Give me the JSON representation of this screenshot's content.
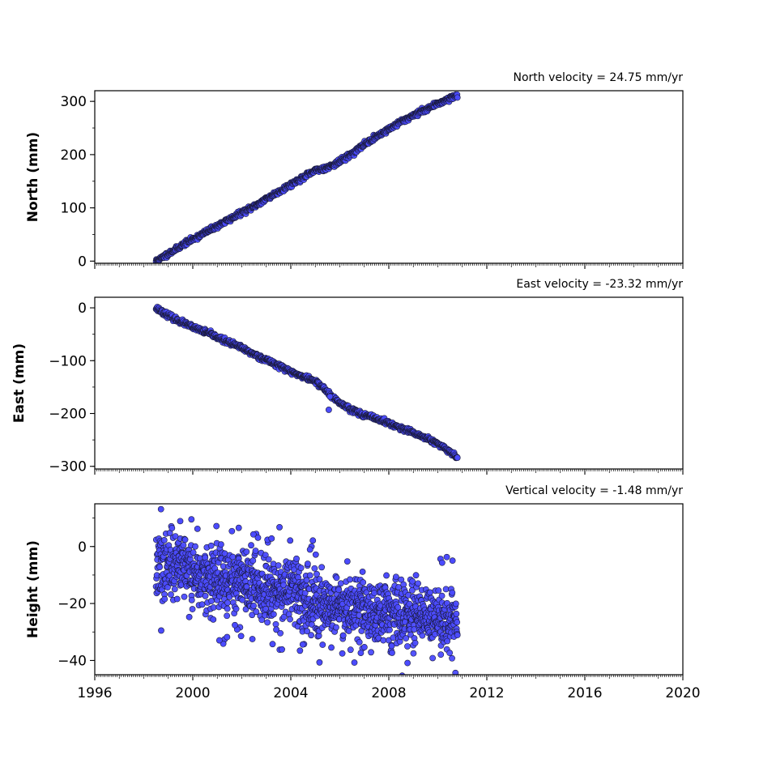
{
  "chart_data": [
    {
      "type": "scatter",
      "title": "North velocity = 24.75 mm/yr",
      "ylabel": "North (mm)",
      "xlim": [
        1996,
        2020
      ],
      "ylim": [
        -4,
        320
      ],
      "yticks": [
        0,
        100,
        200,
        300
      ],
      "ytick_labels": [
        "0",
        "100",
        "200",
        "300"
      ],
      "x_tick_labels_shown": false,
      "marker_color": "#4b4bff",
      "series": [
        {
          "x": [
            1998.5,
            1998.7,
            1999.0,
            1999.3,
            1999.6,
            2000.0,
            2000.4,
            2000.8,
            2001.2,
            2001.6,
            2002.0,
            2002.5,
            2003.0,
            2003.5,
            2004.0,
            2004.5,
            2005.0,
            2005.5,
            2006.0,
            2006.5,
            2007.0,
            2007.5,
            2008.0,
            2008.5,
            2009.0,
            2009.5,
            2010.0,
            2010.5,
            2010.8
          ],
          "y": [
            0,
            5,
            14,
            22,
            31,
            41,
            51,
            61,
            71,
            81,
            91,
            103,
            117,
            130,
            144,
            157,
            170,
            176,
            187,
            202,
            219,
            234,
            248,
            262,
            274,
            285,
            296,
            306,
            312
          ]
        }
      ]
    },
    {
      "type": "scatter",
      "title": "East velocity = -23.32 mm/yr",
      "ylabel": "East (mm)",
      "xlim": [
        1996,
        2020
      ],
      "ylim": [
        -305,
        20
      ],
      "yticks": [
        0,
        -100,
        -200,
        -300
      ],
      "ytick_labels": [
        "0",
        "−100",
        "−200",
        "−300"
      ],
      "x_tick_labels_shown": false,
      "marker_color": "#4b4bff",
      "series": [
        {
          "x": [
            1998.5,
            1998.7,
            1999.0,
            1999.3,
            1999.6,
            2000.0,
            2000.4,
            2000.8,
            2001.2,
            2001.6,
            2002.0,
            2002.5,
            2003.0,
            2003.5,
            2004.0,
            2004.5,
            2005.0,
            2005.3,
            2005.6,
            2006.0,
            2006.5,
            2007.0,
            2007.5,
            2008.0,
            2008.5,
            2009.0,
            2009.5,
            2010.0,
            2010.5,
            2010.8
          ],
          "y": [
            0,
            -6,
            -14,
            -22,
            -28,
            -37,
            -44,
            -51,
            -60,
            -68,
            -76,
            -88,
            -98,
            -109,
            -121,
            -130,
            -139,
            -150,
            -165,
            -180,
            -193,
            -203,
            -210,
            -218,
            -228,
            -237,
            -246,
            -258,
            -272,
            -284
          ]
        }
      ],
      "outliers": {
        "x": [
          2005.55,
          2005.6
        ],
        "y": [
          -193,
          -168
        ]
      }
    },
    {
      "type": "scatter",
      "title": "Vertical velocity = -1.48 mm/yr",
      "ylabel": "Height (mm)",
      "xlim": [
        1996,
        2020
      ],
      "ylim": [
        -45,
        15
      ],
      "yticks": [
        0,
        -20,
        -40
      ],
      "ytick_labels": [
        "0",
        "−20",
        "−40"
      ],
      "xticks": [
        1996,
        2000,
        2004,
        2008,
        2012,
        2016,
        2020
      ],
      "xtick_labels": [
        "1996",
        "2000",
        "2004",
        "2008",
        "2012",
        "2016",
        "2020"
      ],
      "x_tick_labels_shown": true,
      "marker_color": "#4b4bff",
      "series": [
        {
          "x": [
            1998.5,
            1999.0,
            1999.5,
            2000.0,
            2000.5,
            2001.0,
            2001.5,
            2002.0,
            2002.5,
            2003.0,
            2003.5,
            2004.0,
            2004.5,
            2005.0,
            2005.5,
            2006.0,
            2006.5,
            2007.0,
            2007.5,
            2008.0,
            2008.5,
            2009.0,
            2009.5,
            2010.0,
            2010.5,
            2010.8
          ],
          "y": [
            -8,
            -7,
            -4,
            -9,
            -12,
            -12,
            -13,
            -11,
            -14,
            -14,
            -15,
            -15,
            -18,
            -20,
            -20,
            -21,
            -20,
            -23,
            -23,
            -23,
            -25,
            -24,
            -25,
            -26,
            -25,
            -27
          ]
        }
      ]
    }
  ]
}
